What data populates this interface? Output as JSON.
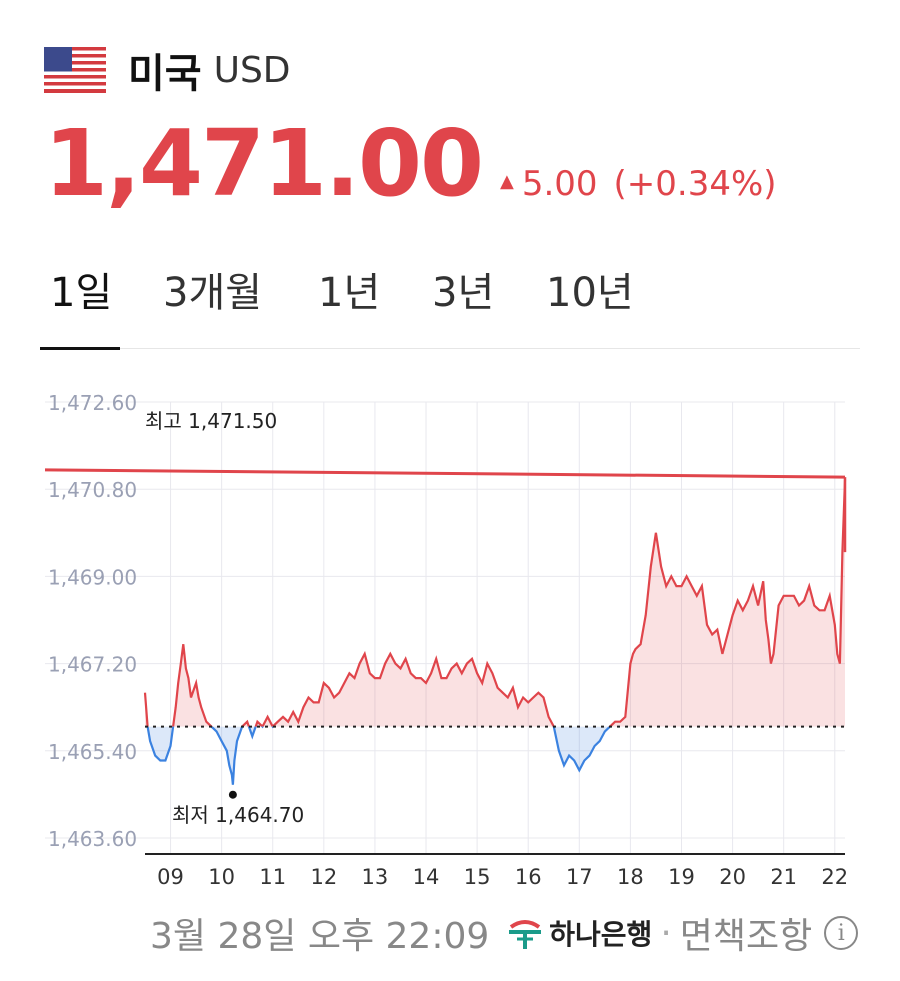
{
  "header": {
    "flag_icon": "us-flag-icon",
    "country": "미국",
    "currency": "USD"
  },
  "quote": {
    "price": "1,471.00",
    "change": "5.00",
    "change_pct": "(+0.34%)",
    "direction": "up",
    "color": "#e0454b"
  },
  "tabs": [
    {
      "label": "1일",
      "active": true
    },
    {
      "label": "3개월",
      "active": false
    },
    {
      "label": "1년",
      "active": false
    },
    {
      "label": "3년",
      "active": false
    },
    {
      "label": "10년",
      "active": false
    }
  ],
  "chart_data": {
    "type": "area",
    "baseline": 1465.9,
    "ylim": [
      1463.6,
      1472.6
    ],
    "yticks": [
      "1,472.60",
      "1,470.80",
      "1,469.00",
      "1,467.20",
      "1,465.40",
      "1,463.60"
    ],
    "ytick_values": [
      1472.6,
      1470.8,
      1469.0,
      1467.2,
      1465.4,
      1463.6
    ],
    "xlim": [
      8.5,
      22.2
    ],
    "xticks": [
      "09",
      "10",
      "11",
      "12",
      "13",
      "14",
      "15",
      "16",
      "17",
      "18",
      "19",
      "20",
      "21",
      "22"
    ],
    "xtick_values": [
      9,
      10,
      11,
      12,
      13,
      14,
      15,
      16,
      17,
      18,
      19,
      20,
      21,
      22
    ],
    "high_label": "최고 1,471.50",
    "low_label": "최저 1,464.70",
    "low_point": {
      "x": 10.22,
      "y": 1464.7
    },
    "previous_close_line": {
      "x_start": 8.5,
      "x_end": 22.2,
      "y_start": 1471.2,
      "y_end": 1471.05
    },
    "up_color": "#e0454b",
    "down_color": "#3b82e0",
    "series": [
      {
        "x": [
          8.5,
          8.55,
          8.6,
          8.7,
          8.8,
          8.9,
          9.0,
          9.05,
          9.1,
          9.15,
          9.2,
          9.25,
          9.3,
          9.35,
          9.4,
          9.5,
          9.55,
          9.6,
          9.7,
          9.8,
          9.9,
          10.0,
          10.1,
          10.15,
          10.2,
          10.22,
          10.25,
          10.3,
          10.4,
          10.5,
          10.6,
          10.7,
          10.8,
          10.9,
          11.0,
          11.1,
          11.2,
          11.3,
          11.4,
          11.5,
          11.6,
          11.7,
          11.8,
          11.9,
          12.0,
          12.1,
          12.2,
          12.3,
          12.4,
          12.5,
          12.6,
          12.7,
          12.8,
          12.9,
          13.0,
          13.1,
          13.2,
          13.3,
          13.4,
          13.5,
          13.6,
          13.7,
          13.8,
          13.9,
          14.0,
          14.1,
          14.2,
          14.3,
          14.4,
          14.5,
          14.6,
          14.7,
          14.8,
          14.9,
          15.0,
          15.1,
          15.2,
          15.3,
          15.4,
          15.5,
          15.6,
          15.7,
          15.8,
          15.9,
          16.0,
          16.1,
          16.2,
          16.3,
          16.4,
          16.5,
          16.6,
          16.7,
          16.8,
          16.9,
          17.0,
          17.1,
          17.2,
          17.3,
          17.4,
          17.5,
          17.6,
          17.7,
          17.8,
          17.9,
          18.0,
          18.05,
          18.1,
          18.2,
          18.3,
          18.4,
          18.5,
          18.6,
          18.7,
          18.8,
          18.9,
          19.0,
          19.1,
          19.2,
          19.3,
          19.4,
          19.5,
          19.6,
          19.7,
          19.8,
          19.9,
          20.0,
          20.1,
          20.2,
          20.3,
          20.4,
          20.5,
          20.6,
          20.65,
          20.7,
          20.75,
          20.8,
          20.9,
          21.0,
          21.1,
          21.2,
          21.3,
          21.4,
          21.5,
          21.6,
          21.7,
          21.8,
          21.9,
          22.0,
          22.05,
          22.1,
          22.15,
          22.2
        ],
        "y": [
          1466.6,
          1465.9,
          1465.6,
          1465.3,
          1465.2,
          1465.2,
          1465.5,
          1465.9,
          1466.3,
          1466.8,
          1467.2,
          1467.6,
          1467.1,
          1466.9,
          1466.5,
          1466.8,
          1466.5,
          1466.3,
          1466.0,
          1465.9,
          1465.8,
          1465.6,
          1465.4,
          1465.1,
          1464.9,
          1464.7,
          1465.2,
          1465.6,
          1465.9,
          1466.0,
          1465.7,
          1466.0,
          1465.9,
          1466.1,
          1465.9,
          1466.0,
          1466.1,
          1466.0,
          1466.2,
          1466.0,
          1466.3,
          1466.5,
          1466.4,
          1466.4,
          1466.8,
          1466.7,
          1466.5,
          1466.6,
          1466.8,
          1467.0,
          1466.9,
          1467.2,
          1467.4,
          1467.0,
          1466.9,
          1466.9,
          1467.2,
          1467.4,
          1467.2,
          1467.1,
          1467.3,
          1467.0,
          1466.9,
          1466.9,
          1466.8,
          1467.0,
          1467.3,
          1466.9,
          1466.9,
          1467.1,
          1467.2,
          1467.0,
          1467.2,
          1467.3,
          1467.0,
          1466.8,
          1467.2,
          1467.0,
          1466.7,
          1466.6,
          1466.5,
          1466.7,
          1466.3,
          1466.5,
          1466.4,
          1466.5,
          1466.6,
          1466.5,
          1466.1,
          1465.9,
          1465.4,
          1465.1,
          1465.3,
          1465.2,
          1465.0,
          1465.2,
          1465.3,
          1465.5,
          1465.6,
          1465.8,
          1465.9,
          1466.0,
          1466.0,
          1466.1,
          1467.2,
          1467.4,
          1467.5,
          1467.6,
          1468.2,
          1469.2,
          1469.9,
          1469.2,
          1468.8,
          1469.0,
          1468.8,
          1468.8,
          1469.0,
          1468.8,
          1468.6,
          1468.8,
          1468.0,
          1467.8,
          1467.9,
          1467.4,
          1467.8,
          1468.2,
          1468.5,
          1468.3,
          1468.5,
          1468.8,
          1468.4,
          1468.9,
          1468.1,
          1467.7,
          1467.2,
          1467.4,
          1468.4,
          1468.6,
          1468.6,
          1468.6,
          1468.4,
          1468.5,
          1468.8,
          1468.4,
          1468.3,
          1468.3,
          1468.6,
          1468.0,
          1467.4,
          1467.2,
          1469.5,
          1471.0
        ]
      }
    ]
  },
  "footer": {
    "timestamp": "3월 28일 오후 22:09",
    "bank_icon": "hana-bank-logo-icon",
    "bank_name": "하나은행",
    "separator": "·",
    "disclaimer": "면책조항",
    "info_icon": "info-icon",
    "info_glyph": "i"
  }
}
